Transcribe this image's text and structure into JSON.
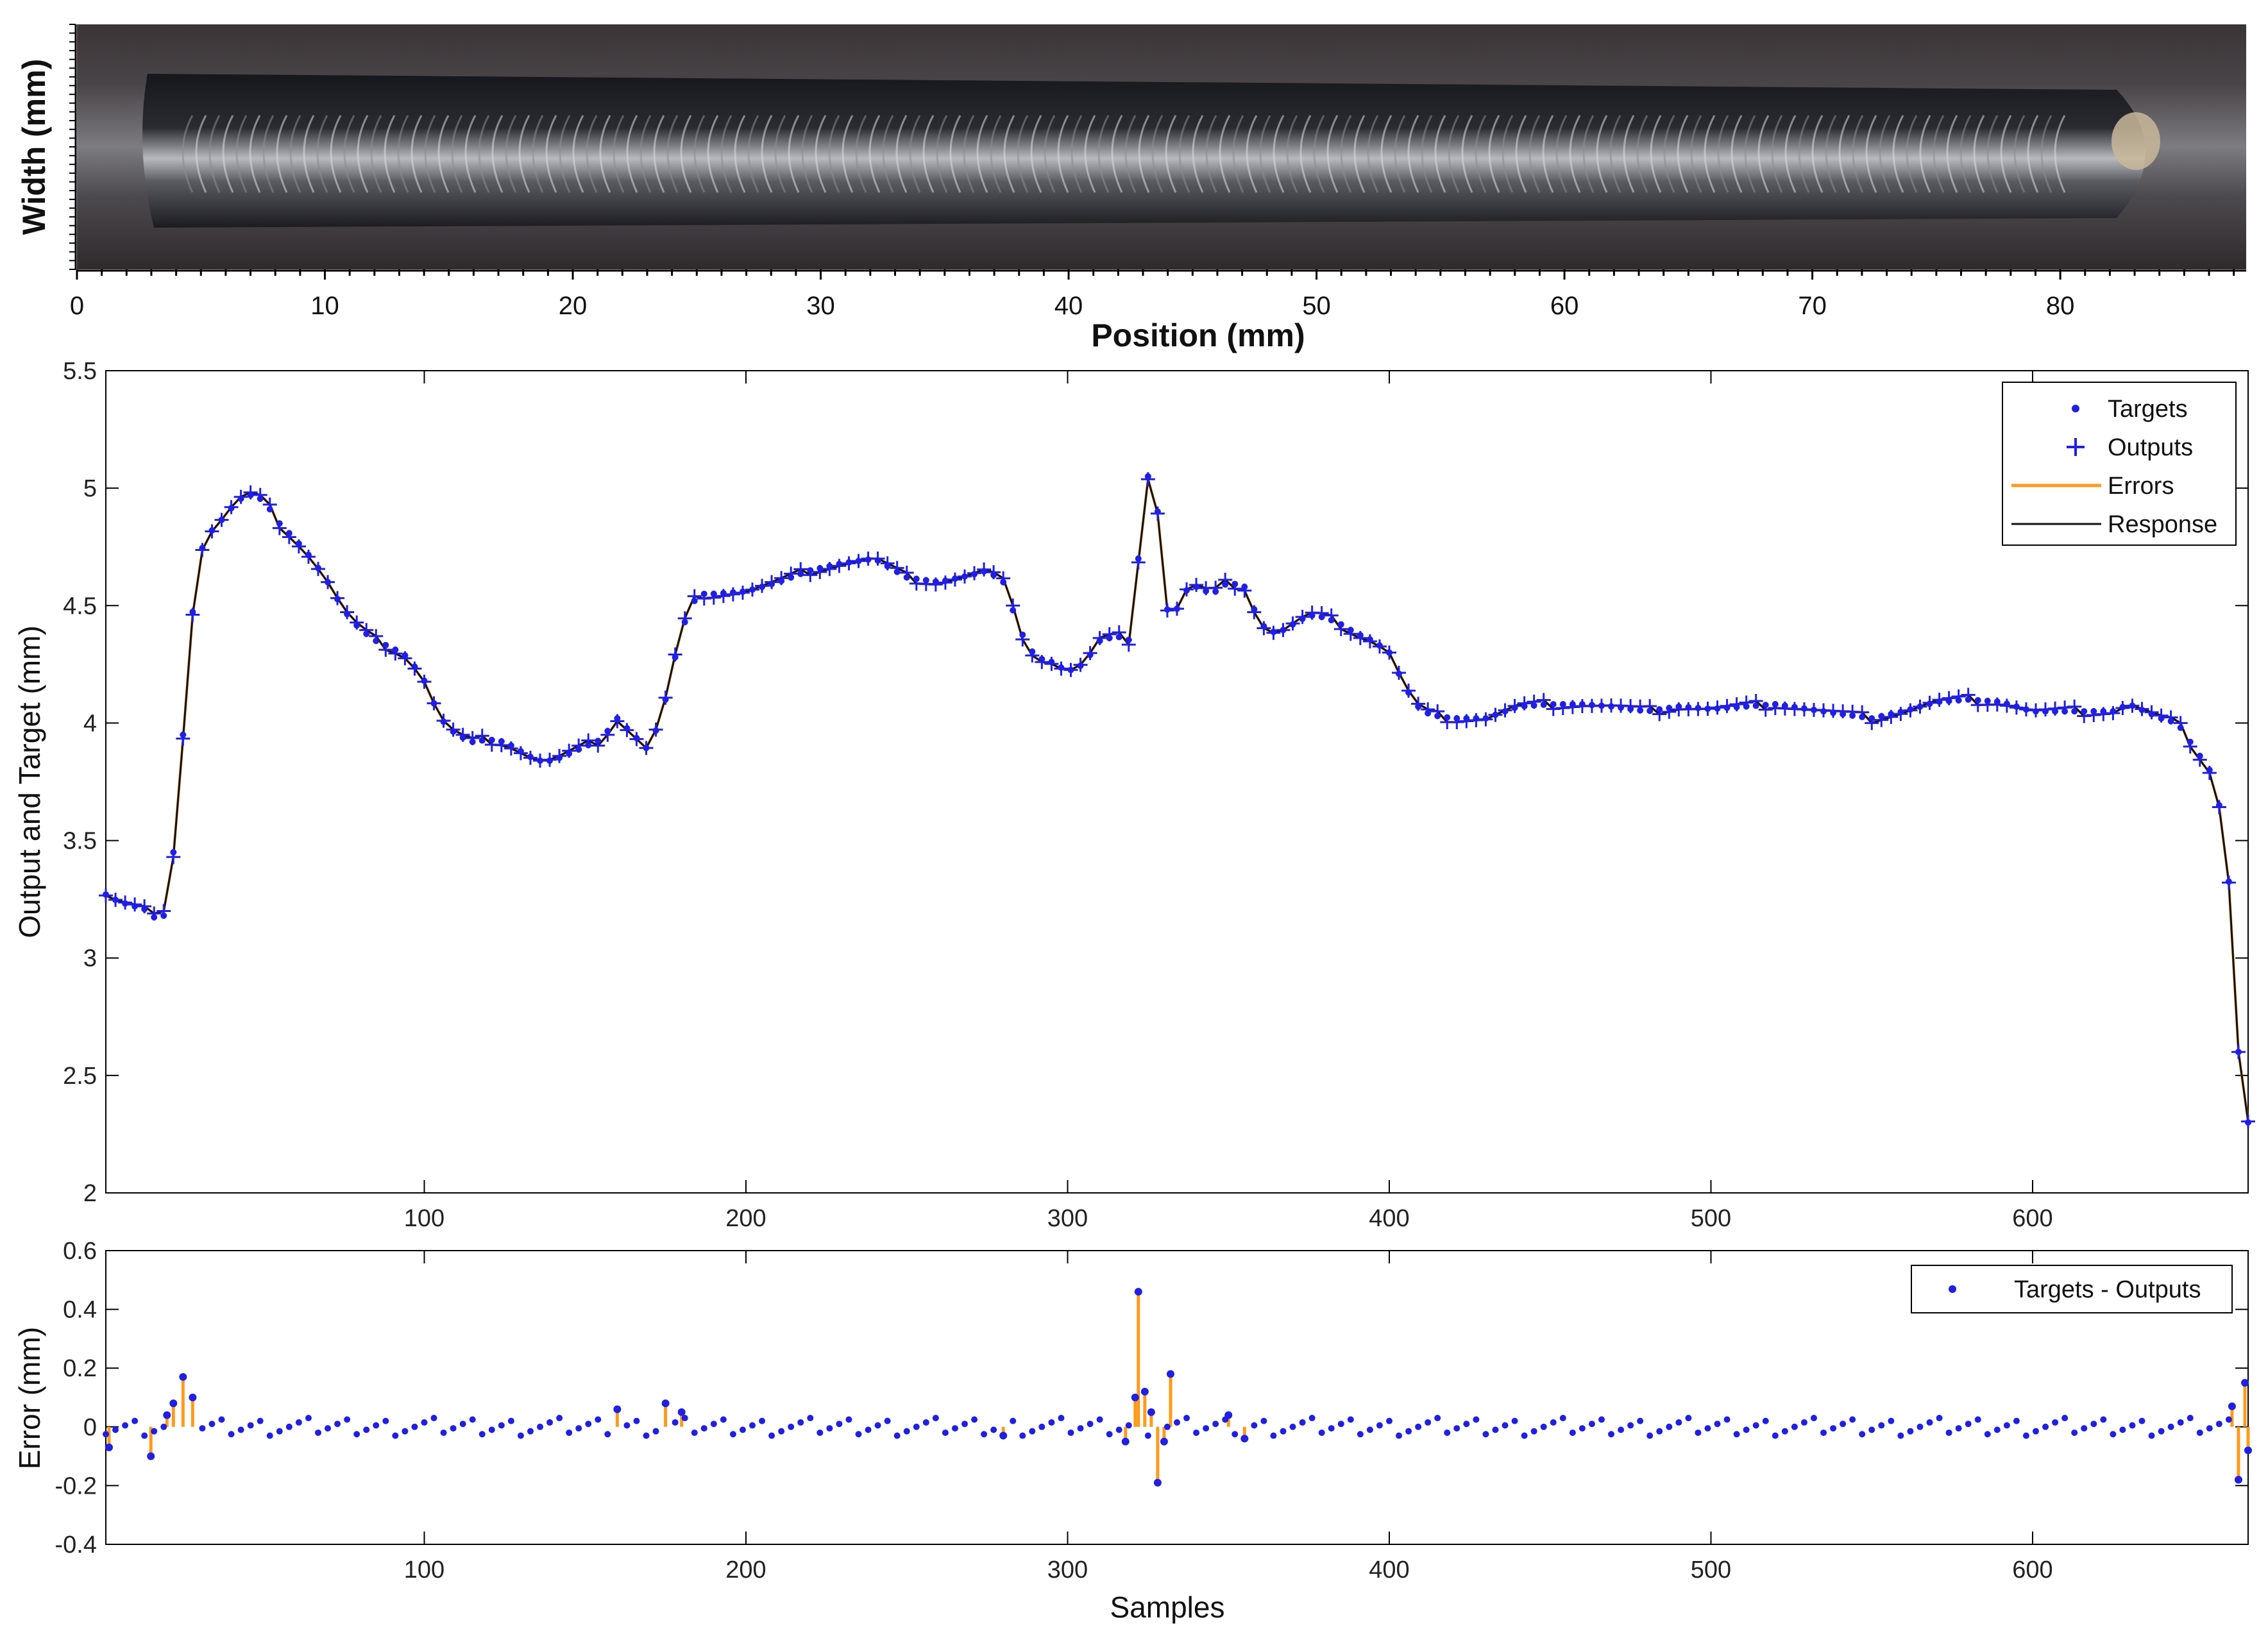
{
  "chart_data": [
    {
      "type": "image",
      "name": "weld-bead-photo",
      "ylabel": "Width (mm)",
      "xlabel": "Position (mm)",
      "xlim": [
        0,
        87.5
      ],
      "xticks": [
        0,
        10,
        20,
        30,
        40,
        50,
        60,
        70,
        80
      ]
    },
    {
      "type": "line",
      "xlabel": "",
      "ylabel": "Output and Target  (mm)",
      "xlim": [
        1,
        667
      ],
      "ylim": [
        2,
        5.5
      ],
      "xticks": [
        100,
        200,
        300,
        400,
        500,
        600
      ],
      "yticks": [
        "2",
        "2.5",
        "3",
        "3.5",
        "4",
        "4.5",
        "5",
        "5.5"
      ],
      "legend_position": "top-right",
      "legend": [
        "Targets",
        "Outputs",
        "Errors",
        "Response"
      ],
      "series_colors": {
        "Targets": "#1f1fe6",
        "Outputs": "#1f1fe6",
        "Errors": "#ff9a1a",
        "Response": "#111111"
      },
      "profile_samples": [
        1,
        5,
        10,
        15,
        18,
        21,
        24,
        27,
        30,
        34,
        38,
        42,
        46,
        50,
        55,
        60,
        65,
        70,
        75,
        80,
        85,
        90,
        95,
        100,
        105,
        110,
        115,
        120,
        125,
        130,
        135,
        140,
        145,
        150,
        155,
        160,
        165,
        170,
        175,
        180,
        185,
        190,
        200,
        210,
        220,
        230,
        240,
        250,
        260,
        270,
        275,
        280,
        285,
        290,
        295,
        300,
        305,
        310,
        315,
        320,
        322,
        325,
        328,
        330,
        333,
        336,
        340,
        345,
        350,
        355,
        360,
        365,
        370,
        375,
        380,
        385,
        390,
        395,
        400,
        405,
        410,
        415,
        420,
        430,
        440,
        450,
        460,
        470,
        480,
        490,
        500,
        510,
        520,
        530,
        540,
        550,
        560,
        570,
        580,
        590,
        600,
        610,
        620,
        625,
        630,
        640,
        645,
        650,
        655,
        660,
        662,
        664,
        666,
        667
      ],
      "profile_values": [
        3.27,
        3.24,
        3.22,
        3.2,
        3.12,
        3.3,
        3.75,
        4.35,
        4.72,
        4.82,
        4.88,
        4.95,
        4.97,
        4.95,
        4.85,
        4.78,
        4.7,
        4.6,
        4.48,
        4.4,
        4.35,
        4.32,
        4.28,
        4.18,
        4.02,
        3.95,
        3.92,
        3.93,
        3.92,
        3.88,
        3.84,
        3.84,
        3.87,
        3.9,
        3.93,
        4.02,
        3.95,
        3.88,
        4.1,
        4.4,
        4.55,
        4.55,
        4.56,
        4.6,
        4.65,
        4.68,
        4.7,
        4.62,
        4.6,
        4.63,
        4.65,
        4.6,
        4.4,
        4.28,
        4.26,
        4.22,
        4.25,
        4.35,
        4.37,
        4.35,
        4.7,
        5.05,
        4.9,
        4.5,
        4.45,
        4.56,
        4.58,
        4.55,
        4.6,
        4.58,
        4.42,
        4.38,
        4.42,
        4.46,
        4.45,
        4.42,
        4.38,
        4.35,
        4.3,
        4.15,
        4.05,
        4.03,
        4.02,
        4.02,
        4.07,
        4.08,
        4.08,
        4.07,
        4.05,
        4.07,
        4.06,
        4.07,
        4.08,
        4.06,
        4.04,
        4.02,
        4.05,
        4.09,
        4.1,
        4.09,
        4.05,
        4.05,
        4.05,
        4.05,
        4.08,
        4.02,
        4.0,
        3.9,
        3.8,
        3.55,
        3.1,
        2.6,
        2.35,
        2.3
      ]
    },
    {
      "type": "scatter",
      "xlabel": "Samples",
      "ylabel": "Error  (mm)",
      "xlim": [
        1,
        667
      ],
      "ylim": [
        -0.4,
        0.6
      ],
      "xticks": [
        100,
        200,
        300,
        400,
        500,
        600
      ],
      "yticks": [
        "-0.4",
        "-0.2",
        "0",
        "0.2",
        "0.4",
        "0.6"
      ],
      "legend_position": "top-right",
      "legend": [
        "Targets - Outputs"
      ],
      "series_colors": {
        "Targets - Outputs": "#1f1fe6",
        "Errors": "#ff9a1a"
      },
      "spikes": [
        {
          "x": 2,
          "y": -0.07
        },
        {
          "x": 15,
          "y": -0.1
        },
        {
          "x": 20,
          "y": 0.04
        },
        {
          "x": 22,
          "y": 0.08
        },
        {
          "x": 25,
          "y": 0.17
        },
        {
          "x": 28,
          "y": 0.1
        },
        {
          "x": 160,
          "y": 0.06
        },
        {
          "x": 175,
          "y": 0.08
        },
        {
          "x": 180,
          "y": 0.05
        },
        {
          "x": 280,
          "y": -0.03
        },
        {
          "x": 318,
          "y": -0.05
        },
        {
          "x": 321,
          "y": 0.1
        },
        {
          "x": 322,
          "y": 0.46
        },
        {
          "x": 324,
          "y": 0.12
        },
        {
          "x": 326,
          "y": 0.05
        },
        {
          "x": 328,
          "y": -0.19
        },
        {
          "x": 330,
          "y": -0.05
        },
        {
          "x": 332,
          "y": 0.18
        },
        {
          "x": 350,
          "y": 0.04
        },
        {
          "x": 355,
          "y": -0.04
        },
        {
          "x": 662,
          "y": 0.07
        },
        {
          "x": 664,
          "y": -0.18
        },
        {
          "x": 666,
          "y": 0.15
        },
        {
          "x": 667,
          "y": -0.08
        }
      ]
    }
  ]
}
